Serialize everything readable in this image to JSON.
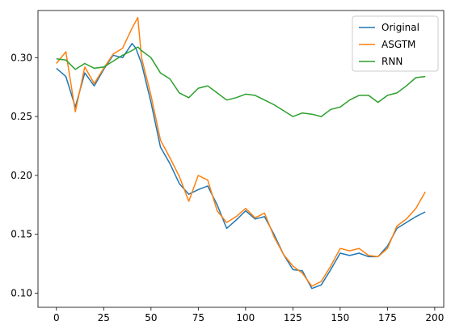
{
  "chart_data": {
    "type": "line",
    "title": "",
    "xlabel": "",
    "ylabel": "",
    "xlim": [
      -9.75,
      204.75
    ],
    "ylim": [
      0.088,
      0.34
    ],
    "xticks": [
      0,
      25,
      50,
      75,
      100,
      125,
      150,
      175,
      200
    ],
    "yticks": [
      0.1,
      0.15,
      0.2,
      0.25,
      0.3
    ],
    "xtick_labels": [
      "0",
      "25",
      "50",
      "75",
      "100",
      "125",
      "150",
      "175",
      "200"
    ],
    "ytick_labels": [
      "0.10",
      "0.15",
      "0.20",
      "0.25",
      "0.30"
    ],
    "grid": false,
    "legend_position": "top-right",
    "series": [
      {
        "name": "Original",
        "color": "#1f77b4",
        "x": [
          0,
          5,
          10,
          15,
          20,
          25,
          30,
          35,
          40,
          42,
          45,
          50,
          55,
          60,
          65,
          70,
          75,
          80,
          85,
          90,
          95,
          100,
          105,
          110,
          115,
          120,
          125,
          130,
          135,
          140,
          145,
          150,
          155,
          160,
          165,
          170,
          175,
          180,
          185,
          190,
          195
        ],
        "values": [
          0.291,
          0.284,
          0.258,
          0.287,
          0.276,
          0.29,
          0.302,
          0.3,
          0.312,
          0.308,
          0.295,
          0.262,
          0.224,
          0.21,
          0.193,
          0.184,
          0.188,
          0.191,
          0.175,
          0.155,
          0.162,
          0.17,
          0.163,
          0.165,
          0.15,
          0.133,
          0.12,
          0.119,
          0.104,
          0.107,
          0.12,
          0.134,
          0.132,
          0.134,
          0.131,
          0.131,
          0.14,
          0.155,
          0.16,
          0.165,
          0.169
        ]
      },
      {
        "name": "ASGTM",
        "color": "#ff7f0e",
        "x": [
          0,
          5,
          10,
          15,
          20,
          25,
          30,
          35,
          40,
          43,
          45,
          50,
          55,
          60,
          65,
          70,
          75,
          80,
          85,
          90,
          95,
          100,
          105,
          110,
          115,
          120,
          125,
          130,
          135,
          140,
          145,
          150,
          155,
          160,
          165,
          170,
          175,
          180,
          185,
          190,
          195
        ],
        "values": [
          0.295,
          0.305,
          0.254,
          0.292,
          0.278,
          0.291,
          0.303,
          0.308,
          0.325,
          0.334,
          0.3,
          0.268,
          0.23,
          0.215,
          0.199,
          0.178,
          0.2,
          0.196,
          0.17,
          0.16,
          0.165,
          0.172,
          0.164,
          0.168,
          0.148,
          0.133,
          0.123,
          0.117,
          0.106,
          0.11,
          0.123,
          0.138,
          0.136,
          0.138,
          0.132,
          0.131,
          0.138,
          0.157,
          0.163,
          0.172,
          0.186
        ]
      },
      {
        "name": "RNN",
        "color": "#2ca02c",
        "x": [
          0,
          5,
          10,
          15,
          20,
          25,
          30,
          35,
          40,
          43,
          45,
          50,
          55,
          60,
          65,
          70,
          75,
          80,
          85,
          90,
          95,
          100,
          105,
          110,
          115,
          120,
          125,
          130,
          135,
          140,
          145,
          150,
          155,
          160,
          165,
          170,
          175,
          180,
          185,
          190,
          195
        ],
        "values": [
          0.299,
          0.298,
          0.29,
          0.295,
          0.291,
          0.292,
          0.297,
          0.302,
          0.306,
          0.309,
          0.306,
          0.3,
          0.287,
          0.282,
          0.27,
          0.266,
          0.274,
          0.276,
          0.27,
          0.264,
          0.266,
          0.269,
          0.268,
          0.264,
          0.26,
          0.255,
          0.25,
          0.253,
          0.252,
          0.25,
          0.256,
          0.258,
          0.264,
          0.268,
          0.268,
          0.262,
          0.268,
          0.27,
          0.276,
          0.283,
          0.284
        ]
      }
    ]
  }
}
